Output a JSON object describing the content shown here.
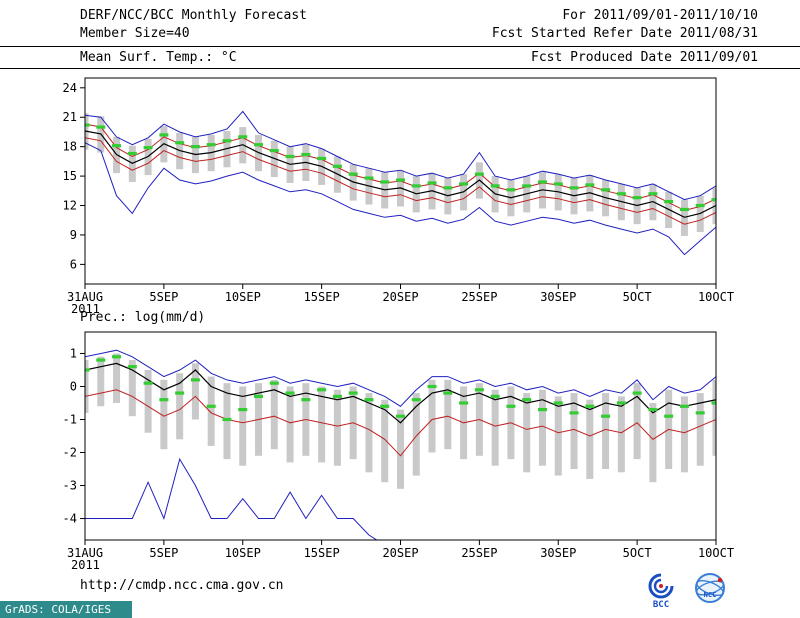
{
  "header": {
    "title": "DERF/NCC/BCC Monthly Forecast",
    "member_size": "Member Size=40",
    "top_chart_label": "Mean Surf. Temp.: °C",
    "for_range": "For 2011/09/01-2011/10/10",
    "refer_date": "Fcst Started Refer Date 2011/08/31",
    "produced_date": "Fcst Produced Date 2011/09/01"
  },
  "bottom_chart_label": "Prec.: log(mm/d)",
  "footer": {
    "url": "http://cmdp.ncc.cma.gov.cn",
    "grads_credit": "GrADS: COLA/IGES",
    "logos": {
      "bcc_label": "BCC",
      "ncc_label": "NCC"
    }
  },
  "colors": {
    "ensemble_max_min": "#2020c0",
    "quartile": "#c02020",
    "ensemble_mean": "#000000",
    "observation_dash": "#33cc33",
    "spread_bar": "#c0c0c0",
    "badge_teal": "#2e8b8b"
  },
  "chart_data": [
    {
      "type": "line",
      "name": "mean-surface-temperature",
      "title": "Mean Surf. Temp.: °C",
      "n_days": 41,
      "x_start": "31AUG",
      "x_year": "2011",
      "x_tick_labels": [
        "31AUG",
        "5SEP",
        "10SEP",
        "15SEP",
        "20SEP",
        "25SEP",
        "30SEP",
        "5OCT",
        "10OCT"
      ],
      "x_tick_positions": [
        0,
        5,
        10,
        15,
        20,
        25,
        30,
        35,
        40
      ],
      "ylim": [
        6,
        24
      ],
      "yticks": [
        6,
        9,
        12,
        15,
        18,
        21,
        24
      ],
      "bars": {
        "color": "#c0c0c0",
        "low": [
          17.7,
          17.4,
          15.3,
          14.4,
          15.1,
          16.4,
          15.7,
          15.3,
          15.5,
          15.9,
          16.3,
          15.5,
          14.9,
          14.3,
          14.5,
          14.1,
          13.3,
          12.5,
          12.1,
          11.7,
          11.9,
          11.3,
          11.6,
          11.1,
          11.5,
          12.7,
          11.3,
          10.9,
          11.3,
          11.7,
          11.5,
          11.1,
          11.4,
          10.9,
          10.5,
          10.1,
          10.5,
          9.7,
          8.9,
          9.3,
          10.1
        ],
        "high": [
          21.4,
          21.1,
          19.0,
          18.1,
          18.8,
          20.1,
          19.4,
          19.0,
          19.2,
          19.6,
          20.0,
          19.2,
          18.6,
          18.0,
          18.2,
          17.8,
          17.0,
          16.2,
          15.8,
          15.4,
          15.6,
          15.0,
          15.3,
          14.8,
          15.2,
          16.4,
          15.0,
          14.6,
          15.0,
          15.4,
          15.2,
          14.8,
          15.1,
          14.6,
          14.2,
          13.8,
          14.2,
          13.4,
          12.6,
          13.0,
          13.8
        ]
      },
      "series": [
        {
          "name": "ensemble-max",
          "color": "#2020c0",
          "width": 1,
          "values": [
            21.2,
            21.0,
            19.0,
            18.2,
            18.9,
            20.3,
            19.5,
            19.0,
            19.3,
            19.8,
            21.6,
            19.4,
            18.7,
            18.0,
            18.3,
            17.8,
            17.0,
            16.2,
            15.8,
            15.4,
            15.6,
            15.0,
            15.3,
            14.8,
            15.2,
            17.4,
            15.0,
            14.6,
            15.0,
            15.5,
            15.2,
            14.8,
            15.1,
            14.6,
            14.2,
            13.8,
            14.2,
            13.4,
            12.6,
            13.0,
            14.0
          ]
        },
        {
          "name": "ensemble-min",
          "color": "#2020c0",
          "width": 1,
          "values": [
            18.4,
            17.6,
            13.0,
            11.2,
            13.8,
            15.8,
            14.6,
            14.2,
            14.5,
            15.0,
            15.4,
            14.6,
            14.0,
            13.4,
            13.6,
            13.2,
            12.4,
            11.6,
            11.2,
            10.8,
            11.0,
            10.4,
            10.7,
            10.2,
            10.6,
            11.8,
            10.4,
            10.0,
            10.4,
            10.8,
            10.6,
            10.2,
            10.5,
            10.0,
            9.6,
            9.2,
            9.6,
            8.8,
            7.0,
            8.4,
            9.8
          ]
        },
        {
          "name": "upper-quartile",
          "color": "#c02020",
          "width": 1,
          "values": [
            20.3,
            20.0,
            17.9,
            17.0,
            17.7,
            19.0,
            18.3,
            17.9,
            18.1,
            18.5,
            18.9,
            18.1,
            17.5,
            16.9,
            17.1,
            16.7,
            15.9,
            15.1,
            14.7,
            14.3,
            14.5,
            13.9,
            14.2,
            13.7,
            14.1,
            15.3,
            13.9,
            13.5,
            13.9,
            14.3,
            14.1,
            13.7,
            14.0,
            13.5,
            13.1,
            12.7,
            13.1,
            12.3,
            11.5,
            11.9,
            12.7
          ]
        },
        {
          "name": "lower-quartile",
          "color": "#c02020",
          "width": 1,
          "values": [
            18.9,
            18.6,
            16.5,
            15.6,
            16.3,
            17.6,
            16.9,
            16.5,
            16.7,
            17.1,
            17.5,
            16.7,
            16.1,
            15.5,
            15.7,
            15.3,
            14.5,
            13.7,
            13.3,
            12.9,
            13.1,
            12.5,
            12.8,
            12.3,
            12.7,
            13.9,
            12.5,
            12.1,
            12.5,
            12.9,
            12.7,
            12.3,
            12.6,
            12.1,
            11.7,
            11.3,
            11.7,
            10.9,
            10.1,
            10.5,
            11.3
          ]
        },
        {
          "name": "ensemble-mean",
          "color": "#000000",
          "width": 1.2,
          "values": [
            19.6,
            19.3,
            17.2,
            16.3,
            17.0,
            18.3,
            17.6,
            17.2,
            17.4,
            17.8,
            18.2,
            17.4,
            16.8,
            16.2,
            16.4,
            16.0,
            15.2,
            14.4,
            14.0,
            13.6,
            13.8,
            13.2,
            13.5,
            13.0,
            13.4,
            14.6,
            13.2,
            12.8,
            13.2,
            13.6,
            13.4,
            13.0,
            13.3,
            12.8,
            12.4,
            12.0,
            12.4,
            11.6,
            10.8,
            11.2,
            12.0
          ]
        }
      ],
      "markers": {
        "name": "observation-dash",
        "color": "#33cc33",
        "values": [
          20.2,
          20.0,
          18.1,
          17.3,
          17.9,
          19.2,
          18.4,
          18.0,
          18.2,
          18.6,
          19.0,
          18.2,
          17.6,
          17.0,
          17.2,
          16.8,
          16.0,
          15.2,
          14.8,
          14.4,
          14.6,
          14.0,
          14.3,
          13.8,
          14.2,
          15.2,
          14.0,
          13.6,
          14.0,
          14.4,
          14.2,
          13.8,
          14.1,
          13.6,
          13.2,
          12.8,
          13.2,
          12.4,
          11.6,
          12.0,
          12.6
        ]
      }
    },
    {
      "type": "line",
      "name": "precipitation-log",
      "title": "Prec.: log(mm/d)",
      "n_days": 41,
      "x_start": "31AUG",
      "x_year": "2011",
      "x_tick_labels": [
        "31AUG",
        "5SEP",
        "10SEP",
        "15SEP",
        "20SEP",
        "25SEP",
        "30SEP",
        "5OCT",
        "10OCT"
      ],
      "x_tick_positions": [
        0,
        5,
        10,
        15,
        20,
        25,
        30,
        35,
        40
      ],
      "ylim": [
        -4,
        1
      ],
      "yticks": [
        1,
        0,
        -1,
        -2,
        -3,
        -4
      ],
      "bars": {
        "color": "#c0c0c0",
        "low": [
          -0.8,
          -0.6,
          -0.5,
          -0.9,
          -1.4,
          -1.9,
          -1.6,
          -1.0,
          -1.8,
          -2.2,
          -2.4,
          -2.1,
          -1.9,
          -2.3,
          -2.1,
          -2.3,
          -2.4,
          -2.2,
          -2.6,
          -2.9,
          -3.1,
          -2.7,
          -2.0,
          -1.9,
          -2.2,
          -2.1,
          -2.4,
          -2.2,
          -2.6,
          -2.4,
          -2.7,
          -2.5,
          -2.8,
          -2.5,
          -2.6,
          -2.2,
          -2.9,
          -2.5,
          -2.6,
          -2.4,
          -2.1
        ],
        "high": [
          0.8,
          0.9,
          1.0,
          0.8,
          0.5,
          0.2,
          0.4,
          0.7,
          0.3,
          0.1,
          0.0,
          0.1,
          0.2,
          0.0,
          0.1,
          0.0,
          -0.1,
          0.0,
          -0.2,
          -0.4,
          -0.7,
          -0.2,
          0.2,
          0.2,
          0.0,
          0.1,
          -0.1,
          0.0,
          -0.2,
          -0.1,
          -0.3,
          -0.2,
          -0.4,
          -0.2,
          -0.3,
          0.1,
          -0.5,
          -0.1,
          -0.3,
          -0.2,
          0.2
        ]
      },
      "series": [
        {
          "name": "ensemble-max",
          "color": "#2020c0",
          "width": 1,
          "values": [
            0.9,
            1.0,
            1.1,
            0.9,
            0.6,
            0.3,
            0.5,
            0.8,
            0.4,
            0.2,
            0.1,
            0.2,
            0.3,
            0.1,
            0.2,
            0.1,
            0.0,
            0.1,
            -0.1,
            -0.3,
            -0.6,
            -0.1,
            0.3,
            0.3,
            0.1,
            0.2,
            0.0,
            0.1,
            -0.1,
            0.0,
            -0.2,
            -0.1,
            -0.3,
            -0.1,
            -0.2,
            0.2,
            -0.4,
            0.0,
            -0.2,
            -0.1,
            0.3
          ]
        },
        {
          "name": "ensemble-min",
          "color": "#2020c0",
          "width": 1,
          "values": [
            -4.0,
            -4.0,
            -4.0,
            -4.0,
            -2.9,
            -4.0,
            -2.2,
            -3.0,
            -4.0,
            -4.0,
            -3.4,
            -4.0,
            -4.0,
            -3.2,
            -4.0,
            -3.3,
            -4.0,
            -4.0,
            -4.5,
            -4.8,
            -4.8,
            -4.8,
            -4.8,
            -4.8,
            -4.8,
            -4.8,
            -4.8,
            -4.8,
            -4.8,
            -4.8,
            -4.8,
            -4.8,
            -4.8,
            -4.8,
            -4.8,
            -4.8,
            -4.8,
            -4.8,
            -4.8,
            -4.8,
            -4.8
          ]
        },
        {
          "name": "lower-quartile",
          "color": "#c02020",
          "width": 1,
          "values": [
            -0.3,
            -0.2,
            -0.1,
            -0.3,
            -0.6,
            -0.9,
            -0.7,
            -0.3,
            -0.8,
            -1.0,
            -1.1,
            -1.0,
            -0.9,
            -1.1,
            -1.0,
            -1.1,
            -1.2,
            -1.1,
            -1.3,
            -1.6,
            -2.1,
            -1.5,
            -1.0,
            -0.9,
            -1.1,
            -1.0,
            -1.2,
            -1.1,
            -1.3,
            -1.2,
            -1.4,
            -1.3,
            -1.5,
            -1.3,
            -1.4,
            -1.1,
            -1.6,
            -1.3,
            -1.4,
            -1.2,
            -1.0
          ]
        },
        {
          "name": "ensemble-mean",
          "color": "#000000",
          "width": 1.2,
          "values": [
            0.5,
            0.6,
            0.7,
            0.5,
            0.2,
            -0.1,
            0.1,
            0.5,
            0.0,
            -0.2,
            -0.3,
            -0.2,
            -0.1,
            -0.3,
            -0.2,
            -0.3,
            -0.4,
            -0.3,
            -0.5,
            -0.7,
            -1.1,
            -0.6,
            -0.2,
            -0.1,
            -0.3,
            -0.2,
            -0.4,
            -0.3,
            -0.5,
            -0.4,
            -0.6,
            -0.5,
            -0.7,
            -0.5,
            -0.6,
            -0.3,
            -0.8,
            -0.5,
            -0.6,
            -0.5,
            -0.4
          ]
        }
      ],
      "markers": {
        "name": "observation-dash",
        "color": "#33cc33",
        "values": [
          0.5,
          0.8,
          0.9,
          0.6,
          0.1,
          -0.4,
          -0.2,
          0.2,
          -0.6,
          -1.0,
          -0.7,
          -0.3,
          0.1,
          -0.2,
          -0.4,
          -0.1,
          -0.3,
          -0.2,
          -0.4,
          -0.6,
          -0.9,
          -0.4,
          0.0,
          -0.2,
          -0.5,
          -0.1,
          -0.3,
          -0.6,
          -0.4,
          -0.7,
          -0.5,
          -0.8,
          -0.6,
          -0.9,
          -0.5,
          -0.2,
          -0.7,
          -0.9,
          -0.6,
          -0.8,
          -0.5
        ]
      }
    }
  ]
}
